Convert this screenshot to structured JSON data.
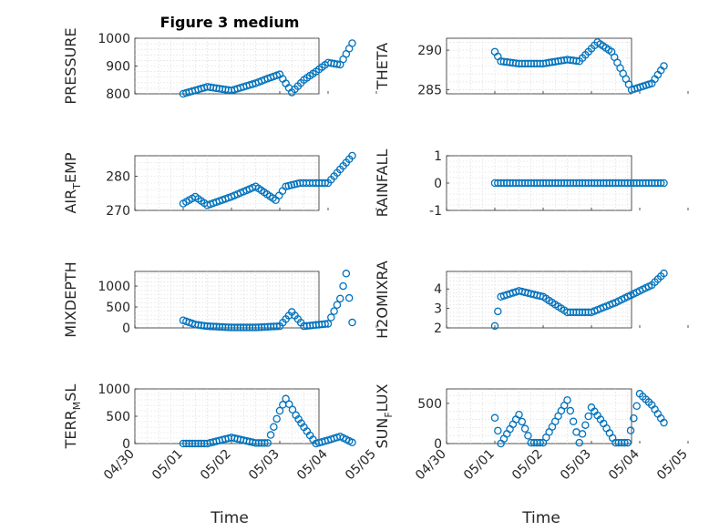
{
  "figure_title": "Figure 3 medium",
  "x_axis_label": "Time",
  "x_tick_labels": [
    "04/30",
    "05/01",
    "05/02",
    "05/03",
    "05/04",
    "05/05"
  ],
  "marker_color": "#0072BD",
  "chart_data": [
    {
      "type": "scatter",
      "title": "Figure 3 medium",
      "ylabel_main": "PRESSURE",
      "ylabel_sub": "",
      "ylim": [
        800,
        1000
      ],
      "yticks": [
        800,
        900,
        1000
      ],
      "x": [
        "05/01 00:00",
        "05/01 12:00",
        "05/02 00:00",
        "05/02 12:00",
        "05/02 18:00",
        "05/03 00:00",
        "05/03 06:00",
        "05/03 12:00",
        "05/03 18:00",
        "05/04 00:00",
        "05/04 06:00",
        "05/04 12:00"
      ],
      "values": [
        800,
        825,
        812,
        838,
        855,
        870,
        805,
        850,
        880,
        912,
        905,
        982
      ]
    },
    {
      "type": "scatter",
      "ylabel_main": "THETA",
      "ylabel_sub": "",
      "ylim": [
        284.5,
        291.5
      ],
      "yticks": [
        285,
        290
      ],
      "x": [
        "05/01 00:00",
        "05/01 03:00",
        "05/01 12:00",
        "05/02 00:00",
        "05/02 12:00",
        "05/02 18:00",
        "05/03 03:00",
        "05/03 10:00",
        "05/03 20:00",
        "05/04 06:00",
        "05/04 12:00"
      ],
      "values": [
        289.8,
        288.6,
        288.3,
        288.3,
        288.8,
        288.6,
        291.0,
        289.8,
        285.0,
        285.8,
        288.0
      ]
    },
    {
      "type": "scatter",
      "ylabel_main": "AIR",
      "ylabel_sub": "T",
      "ylabel_tail": "EMP",
      "ylim": [
        270,
        286
      ],
      "yticks": [
        270,
        280
      ],
      "x": [
        "05/01 00:00",
        "05/01 06:00",
        "05/01 12:00",
        "05/02 00:00",
        "05/02 12:00",
        "05/02 22:00",
        "05/03 03:00",
        "05/03 10:00",
        "05/03 18:00",
        "05/04 00:00",
        "05/04 12:00"
      ],
      "values": [
        272,
        274,
        271.5,
        274,
        277,
        273,
        277,
        278,
        278,
        278,
        286
      ]
    },
    {
      "type": "scatter",
      "ylabel_main": "RAINFALL",
      "ylabel_sub": "",
      "ylim": [
        -1,
        1
      ],
      "yticks": [
        -1,
        0,
        1
      ],
      "x": [
        "05/01 00:00",
        "05/02 00:00",
        "05/03 00:00",
        "05/04 00:00",
        "05/04 12:00"
      ],
      "values": [
        0,
        0,
        0,
        0,
        0
      ]
    },
    {
      "type": "scatter",
      "ylabel_main": "MIXDEPTH",
      "ylabel_sub": "",
      "ylim": [
        0,
        1350
      ],
      "yticks": [
        0,
        500,
        1000
      ],
      "x": [
        "05/01 00:00",
        "05/01 06:00",
        "05/01 12:00",
        "05/02 00:00",
        "05/02 12:00",
        "05/03 00:00",
        "05/03 06:00",
        "05/03 12:00",
        "05/04 00:00",
        "05/04 06:00",
        "05/04 09:00",
        "05/04 12:00"
      ],
      "values": [
        180,
        80,
        40,
        10,
        10,
        40,
        380,
        40,
        100,
        700,
        1300,
        130
      ]
    },
    {
      "type": "scatter",
      "ylabel_main": "H2OMIXRA",
      "ylabel_sub": "",
      "ylim": [
        2,
        4.9
      ],
      "yticks": [
        2,
        3,
        4
      ],
      "x": [
        "05/01 00:00",
        "05/01 03:00",
        "05/01 12:00",
        "05/02 00:00",
        "05/02 12:00",
        "05/03 00:00",
        "05/03 12:00",
        "05/04 00:00",
        "05/04 06:00",
        "05/04 12:00"
      ],
      "values": [
        2.1,
        3.6,
        3.9,
        3.6,
        2.8,
        2.8,
        3.3,
        3.9,
        4.2,
        4.8
      ]
    },
    {
      "type": "scatter",
      "ylabel_main": "TERR",
      "ylabel_sub": "M",
      "ylabel_tail": "SL",
      "ylim": [
        0,
        1000
      ],
      "yticks": [
        0,
        500,
        1000
      ],
      "x": [
        "05/01 00:00",
        "05/01 12:00",
        "05/02 00:00",
        "05/02 12:00",
        "05/02 18:00",
        "05/03 00:00",
        "05/03 03:00",
        "05/03 08:00",
        "05/03 12:00",
        "05/03 18:00",
        "05/04 00:00",
        "05/04 06:00",
        "05/04 12:00"
      ],
      "values": [
        0,
        0,
        110,
        10,
        10,
        600,
        820,
        520,
        300,
        0,
        60,
        130,
        20
      ]
    },
    {
      "type": "scatter",
      "ylabel_main": "SUN",
      "ylabel_sub": "F",
      "ylabel_tail": "LUX",
      "ylim": [
        0,
        680
      ],
      "yticks": [
        0,
        500
      ],
      "x": [
        "05/01 00:00",
        "05/01 03:00",
        "05/01 12:00",
        "05/01 18:00",
        "05/02 00:00",
        "05/02 12:00",
        "05/02 18:00",
        "05/03 00:00",
        "05/03 06:00",
        "05/03 12:00",
        "05/03 18:00",
        "05/04 00:00",
        "05/04 06:00",
        "05/04 12:00"
      ],
      "values": [
        320,
        0,
        360,
        10,
        10,
        540,
        10,
        450,
        250,
        10,
        10,
        620,
        480,
        260
      ]
    }
  ]
}
